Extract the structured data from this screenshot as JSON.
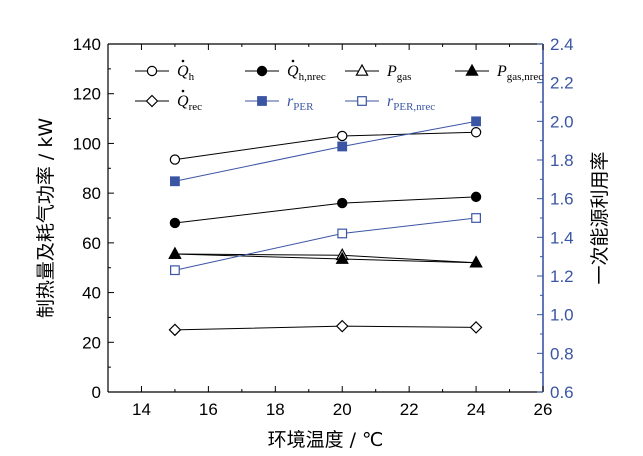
{
  "chart_data": {
    "type": "line",
    "xlabel": "环境温度 / ℃",
    "ylabel_left": "制热量及耗气功率 / kW",
    "ylabel_right": "一次能源利用率",
    "xlim": [
      13,
      26
    ],
    "ylim_left": [
      0,
      140
    ],
    "ylim_right": [
      0.6,
      2.4
    ],
    "x_ticks": [
      "14",
      "16",
      "18",
      "20",
      "22",
      "24",
      "26"
    ],
    "y_left_ticks": [
      "0",
      "20",
      "40",
      "60",
      "80",
      "100",
      "120",
      "140"
    ],
    "y_right_ticks": [
      "0.6",
      "0.8",
      "1.0",
      "1.2",
      "1.4",
      "1.6",
      "1.8",
      "2.0",
      "2.2",
      "2.4"
    ],
    "colors": {
      "black": "#000000",
      "blue": "#3a55a4",
      "axis_right": "#3a55a4"
    },
    "legend_placement": "top",
    "series": [
      {
        "name": "Q",
        "sub": "h",
        "dot": true,
        "axis": "left",
        "marker": "circle-open",
        "color": "#000000",
        "x": [
          15,
          20,
          24
        ],
        "values": [
          93.5,
          103,
          104.5
        ]
      },
      {
        "name": "Q",
        "sub": "h,nrec",
        "dot": true,
        "axis": "left",
        "marker": "circle-filled",
        "color": "#000000",
        "x": [
          15,
          20,
          24
        ],
        "values": [
          68,
          76,
          78.5
        ]
      },
      {
        "name": "P",
        "sub": "gas",
        "dot": false,
        "axis": "left",
        "marker": "triangle-open",
        "color": "#000000",
        "x": [
          15,
          20,
          24
        ],
        "values": [
          55.5,
          55,
          52
        ]
      },
      {
        "name": "P",
        "sub": "gas,nrec",
        "dot": false,
        "axis": "left",
        "marker": "triangle-filled",
        "color": "#000000",
        "x": [
          15,
          20,
          24
        ],
        "values": [
          55.5,
          53.5,
          52
        ]
      },
      {
        "name": "Q",
        "sub": "rec",
        "dot": true,
        "axis": "left",
        "marker": "diamond-open",
        "color": "#000000",
        "x": [
          15,
          20,
          24
        ],
        "values": [
          25,
          26.5,
          26
        ]
      },
      {
        "name": "r",
        "sub": "PER",
        "dot": false,
        "axis": "right",
        "marker": "square-filled",
        "color": "#3a55a4",
        "x": [
          15,
          20,
          24
        ],
        "values": [
          1.69,
          1.87,
          2.0
        ]
      },
      {
        "name": "r",
        "sub": "PER,nrec",
        "dot": false,
        "axis": "right",
        "marker": "square-open",
        "color": "#3a55a4",
        "x": [
          15,
          20,
          24
        ],
        "values": [
          1.23,
          1.42,
          1.5
        ]
      }
    ]
  }
}
